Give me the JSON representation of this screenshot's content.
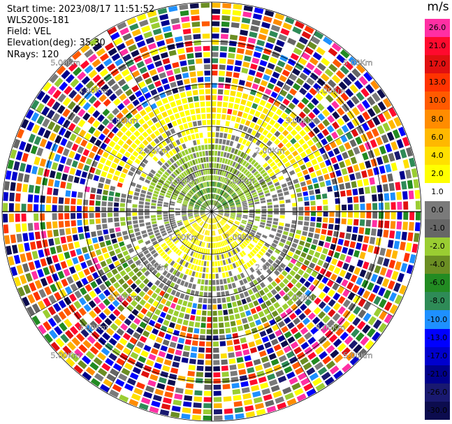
{
  "header": {
    "start_time": "Start time: 2023/08/17 11:51:52",
    "instrument": "WLS200s-181",
    "field": "Field: VEL",
    "elevation": "Elevation(deg): 35.30",
    "nrays": "NRays: 120"
  },
  "colorbar": {
    "unit": "m/s",
    "labels": [
      "26.0",
      "21.0",
      "17.0",
      "13.0",
      "10.0",
      "8.0",
      "6.0",
      "4.0",
      "2.0",
      "1.0",
      "0.0",
      "-1.0",
      "-2.0",
      "-4.0",
      "-6.0",
      "-8.0",
      "-10.0",
      "-13.0",
      "-17.0",
      "-21.0",
      "-26.0",
      "-30.0"
    ],
    "colors": [
      "#ff2fa3",
      "#ff0a2e",
      "#e01010",
      "#ff3300",
      "#ff5a00",
      "#ff8c00",
      "#ffb800",
      "#ffe000",
      "#ffff00",
      "#ffffff",
      "#7a7a7a",
      "#666666",
      "#9acd32",
      "#6b8e23",
      "#228b22",
      "#2e8b57",
      "#1e90ff",
      "#0000ff",
      "#0000cd",
      "#00008b",
      "#191970",
      "#0c0c4e"
    ]
  },
  "chart_data": {
    "type": "heatmap",
    "subtype": "ppi-polar",
    "field": "VEL",
    "unit": "m/s",
    "n_rays": 120,
    "elevation_deg": 35.3,
    "range_ring_labels": [
      "1.00Km",
      "2.00Km",
      "3.00Km",
      "4.00Km",
      "5.00Km"
    ],
    "colorbar_ticks": [
      26.0,
      21.0,
      17.0,
      13.0,
      10.0,
      8.0,
      6.0,
      4.0,
      2.0,
      1.0,
      0.0,
      -1.0,
      -2.0,
      -4.0,
      -6.0,
      -8.0,
      -10.0,
      -13.0,
      -17.0,
      -21.0,
      -26.0,
      -30.0
    ],
    "pattern": {
      "near_upwind_sector": "green (about -2 to -6 m/s)",
      "near_downwind_sector": "yellow (about +2 to +4 m/s)",
      "mid_ring": "grey near-zero, yellow band to the north, green band to the south",
      "far_field": "noise covering the full color range"
    }
  }
}
